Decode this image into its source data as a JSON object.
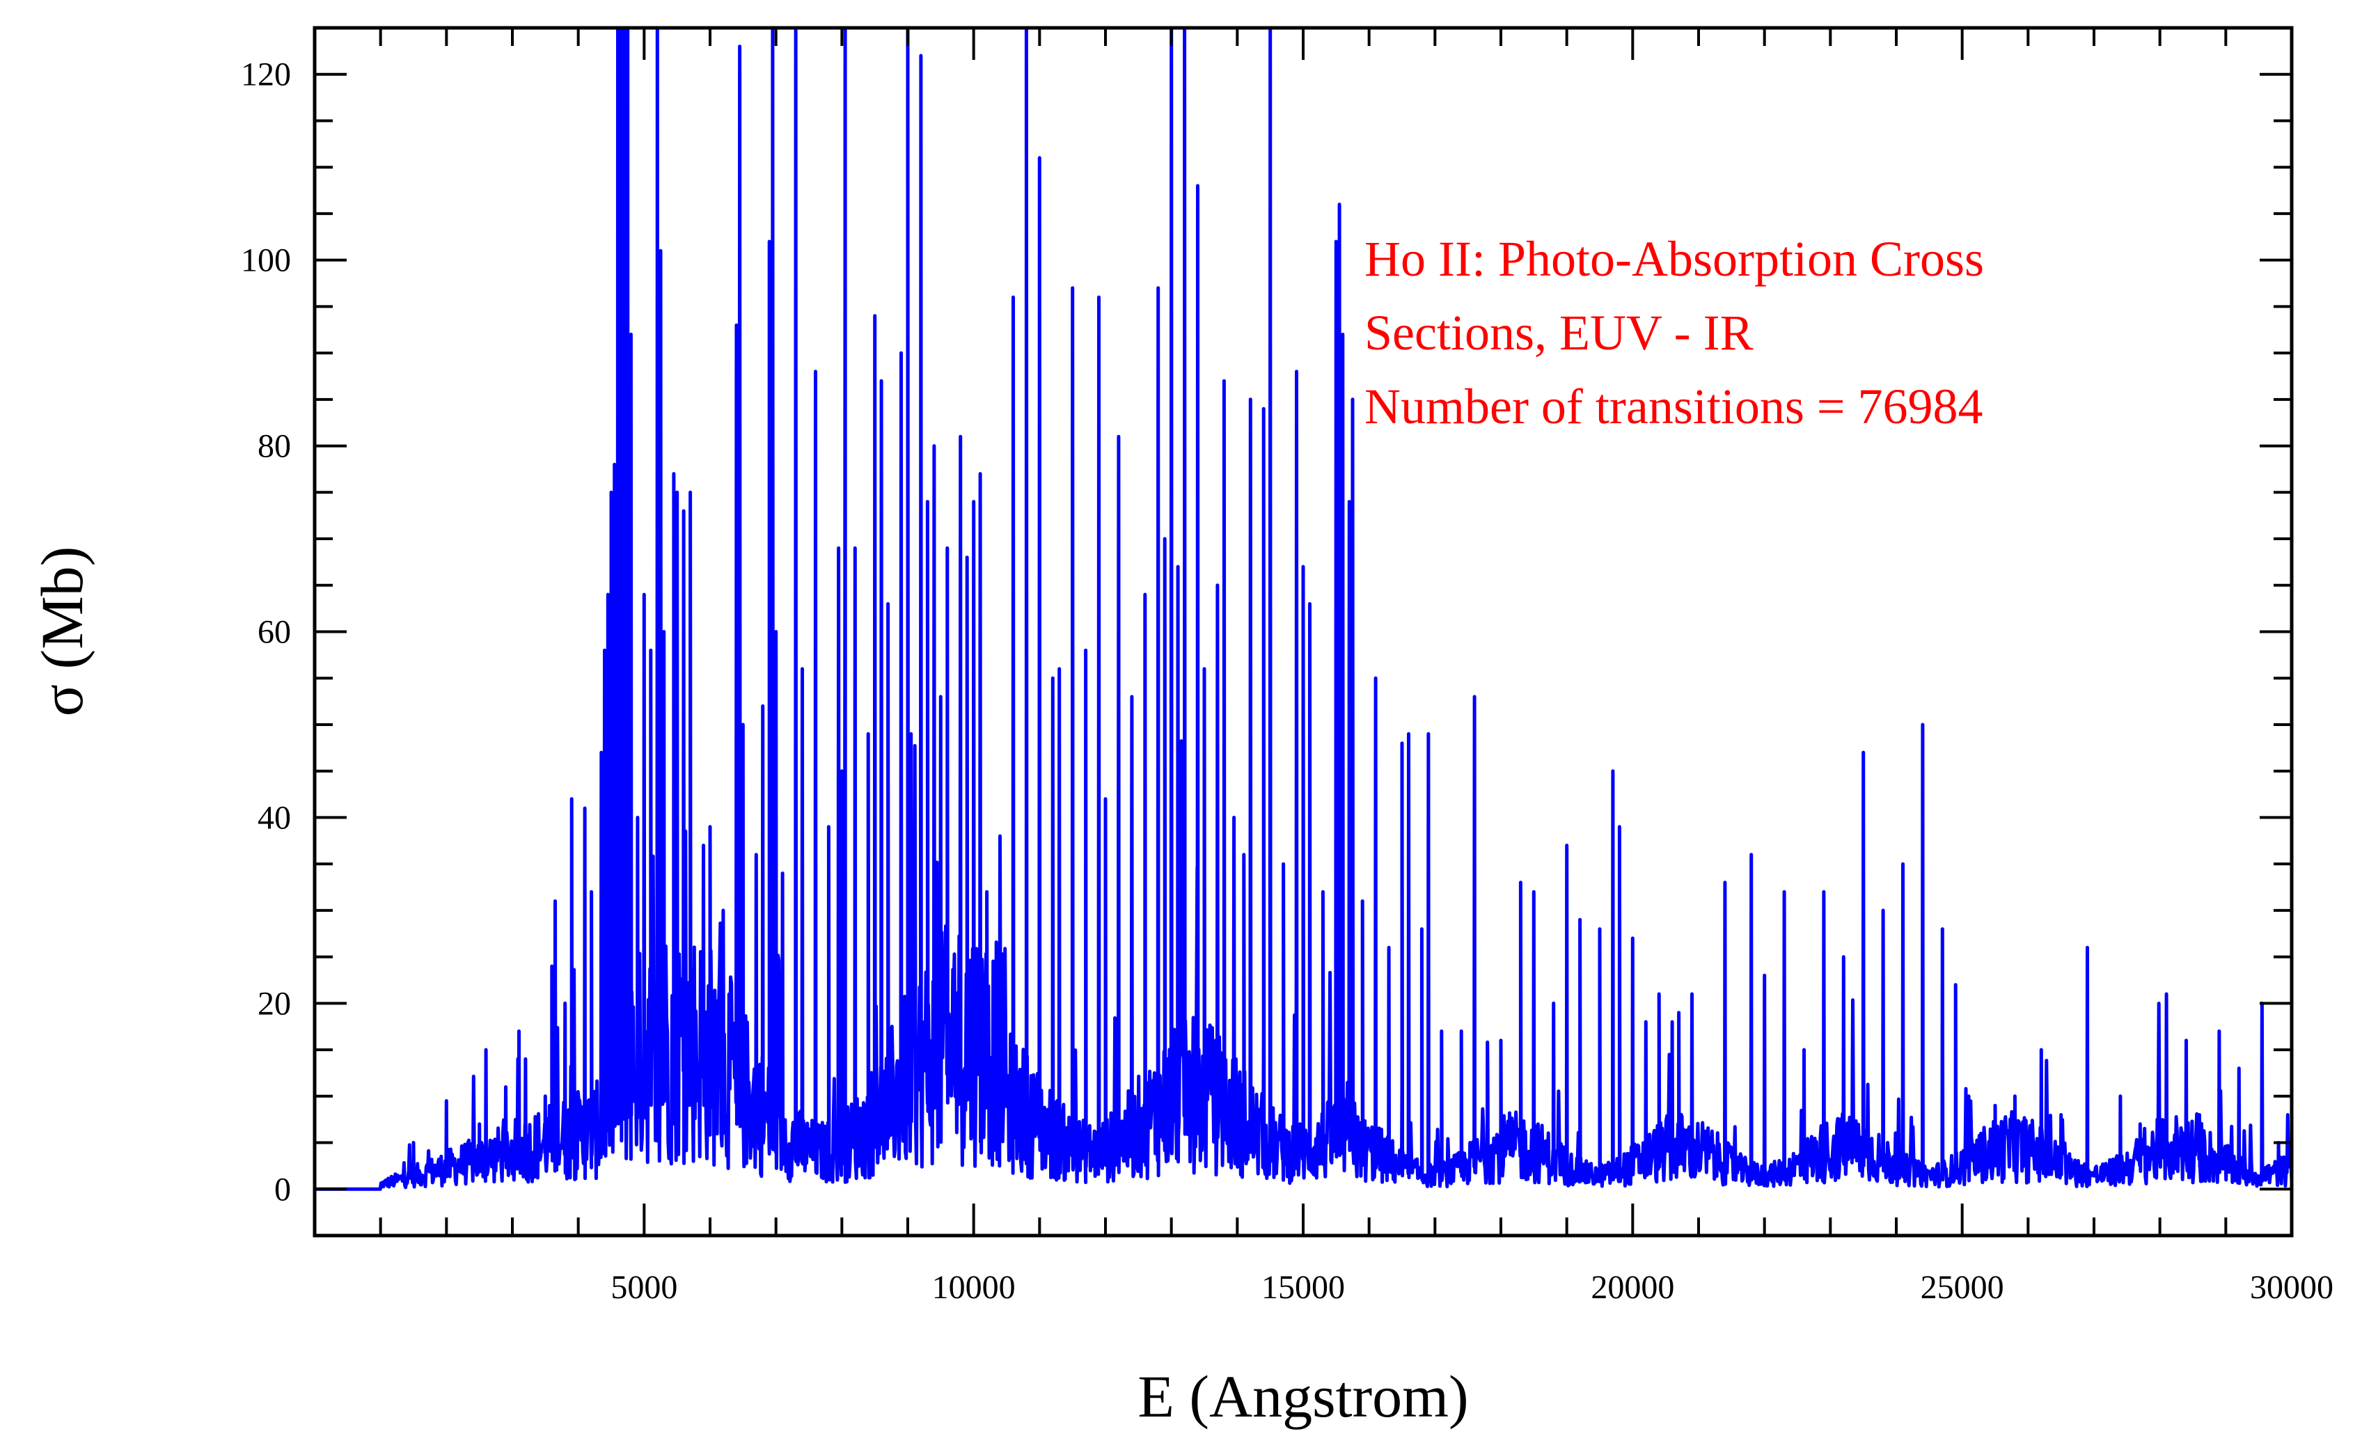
{
  "chart_data": {
    "type": "line",
    "xlabel": "E (Angstrom)",
    "ylabel": "σ (Mb)",
    "xlim": [
      0,
      30000
    ],
    "ylim": [
      -5,
      125
    ],
    "x_ticks": [
      5000,
      10000,
      15000,
      20000,
      25000,
      30000
    ],
    "y_ticks": [
      0,
      20,
      40,
      60,
      80,
      100,
      120
    ],
    "grid": false,
    "line_color": "#0000ff",
    "annotation_color": "#ff0000",
    "annotation": [
      "Ho II: Photo-Absorption Cross",
      "Sections, EUV - IR",
      "Number of transitions = 76984"
    ],
    "series": [
      {
        "peaks": [
          [
            1500,
            5
          ],
          [
            2000,
            9.5
          ],
          [
            2500,
            7
          ],
          [
            2600,
            15
          ],
          [
            2900,
            11
          ],
          [
            3100,
            17
          ],
          [
            3200,
            14
          ],
          [
            3500,
            10
          ],
          [
            3600,
            24
          ],
          [
            3650,
            31
          ],
          [
            3800,
            20
          ],
          [
            3900,
            42
          ],
          [
            4100,
            41
          ],
          [
            4200,
            32
          ],
          [
            4350,
            47
          ],
          [
            4400,
            58
          ],
          [
            4450,
            64
          ],
          [
            4500,
            75
          ],
          [
            4550,
            78
          ],
          [
            4600,
            125
          ],
          [
            4650,
            125
          ],
          [
            4700,
            125
          ],
          [
            4750,
            125
          ],
          [
            4800,
            92
          ],
          [
            4900,
            40
          ],
          [
            5000,
            64
          ],
          [
            5100,
            58
          ],
          [
            5200,
            125
          ],
          [
            5250,
            101
          ],
          [
            5300,
            60
          ],
          [
            5450,
            77
          ],
          [
            5500,
            75
          ],
          [
            5600,
            73
          ],
          [
            5700,
            75
          ],
          [
            5900,
            37
          ],
          [
            6000,
            39
          ],
          [
            6200,
            30
          ],
          [
            6400,
            93
          ],
          [
            6450,
            123
          ],
          [
            6500,
            50
          ],
          [
            6700,
            36
          ],
          [
            6800,
            52
          ],
          [
            6900,
            102
          ],
          [
            6950,
            125
          ],
          [
            7000,
            60
          ],
          [
            7100,
            34
          ],
          [
            7300,
            125
          ],
          [
            7400,
            56
          ],
          [
            7600,
            88
          ],
          [
            7800,
            39
          ],
          [
            7950,
            69
          ],
          [
            8000,
            45
          ],
          [
            8050,
            125
          ],
          [
            8200,
            69
          ],
          [
            8400,
            49
          ],
          [
            8500,
            94
          ],
          [
            8600,
            87
          ],
          [
            8700,
            63
          ],
          [
            8900,
            90
          ],
          [
            9000,
            125
          ],
          [
            9050,
            49
          ],
          [
            9200,
            122
          ],
          [
            9300,
            74
          ],
          [
            9400,
            80
          ],
          [
            9500,
            53
          ],
          [
            9600,
            69
          ],
          [
            9800,
            81
          ],
          [
            9900,
            68
          ],
          [
            10000,
            74
          ],
          [
            10100,
            77
          ],
          [
            10200,
            32
          ],
          [
            10400,
            38
          ],
          [
            10600,
            96
          ],
          [
            10800,
            125
          ],
          [
            11000,
            111
          ],
          [
            11200,
            55
          ],
          [
            11300,
            56
          ],
          [
            11500,
            97
          ],
          [
            11700,
            58
          ],
          [
            11900,
            96
          ],
          [
            12000,
            42
          ],
          [
            12200,
            81
          ],
          [
            12400,
            53
          ],
          [
            12600,
            64
          ],
          [
            12800,
            97
          ],
          [
            12900,
            70
          ],
          [
            13000,
            125
          ],
          [
            13100,
            67
          ],
          [
            13200,
            125
          ],
          [
            13400,
            108
          ],
          [
            13500,
            56
          ],
          [
            13700,
            65
          ],
          [
            13800,
            87
          ],
          [
            13950,
            40
          ],
          [
            14100,
            36
          ],
          [
            14200,
            85
          ],
          [
            14400,
            84
          ],
          [
            14500,
            125
          ],
          [
            14700,
            35
          ],
          [
            14900,
            88
          ],
          [
            15000,
            67
          ],
          [
            15100,
            63
          ],
          [
            15300,
            32
          ],
          [
            15500,
            102
          ],
          [
            15550,
            106
          ],
          [
            15600,
            92
          ],
          [
            15700,
            74
          ],
          [
            15750,
            85
          ],
          [
            15900,
            31
          ],
          [
            16100,
            55
          ],
          [
            16300,
            26
          ],
          [
            16500,
            48
          ],
          [
            16600,
            49
          ],
          [
            16800,
            28
          ],
          [
            16900,
            49
          ],
          [
            17100,
            17
          ],
          [
            17400,
            17
          ],
          [
            17600,
            53
          ],
          [
            17800,
            12
          ],
          [
            18000,
            16
          ],
          [
            18300,
            33
          ],
          [
            18500,
            32
          ],
          [
            18800,
            20
          ],
          [
            19000,
            37
          ],
          [
            19200,
            29
          ],
          [
            19500,
            28
          ],
          [
            19700,
            45
          ],
          [
            19800,
            39
          ],
          [
            20000,
            27
          ],
          [
            20200,
            18
          ],
          [
            20400,
            21
          ],
          [
            20600,
            18
          ],
          [
            20700,
            19
          ],
          [
            20900,
            21
          ],
          [
            21400,
            33
          ],
          [
            21800,
            36
          ],
          [
            22000,
            23
          ],
          [
            22300,
            32
          ],
          [
            22600,
            15
          ],
          [
            22900,
            32
          ],
          [
            23200,
            25
          ],
          [
            23500,
            47
          ],
          [
            23800,
            30
          ],
          [
            24100,
            35
          ],
          [
            24400,
            50
          ],
          [
            24700,
            28
          ],
          [
            24900,
            22
          ],
          [
            25100,
            10
          ],
          [
            25500,
            9
          ],
          [
            25800,
            10
          ],
          [
            26200,
            15
          ],
          [
            26500,
            8
          ],
          [
            26900,
            26
          ],
          [
            27400,
            10
          ],
          [
            27700,
            7
          ],
          [
            28100,
            21
          ],
          [
            28400,
            16
          ],
          [
            28600,
            8
          ],
          [
            28900,
            17
          ],
          [
            29200,
            13
          ],
          [
            29550,
            20
          ],
          [
            29800,
            5
          ]
        ]
      }
    ]
  }
}
